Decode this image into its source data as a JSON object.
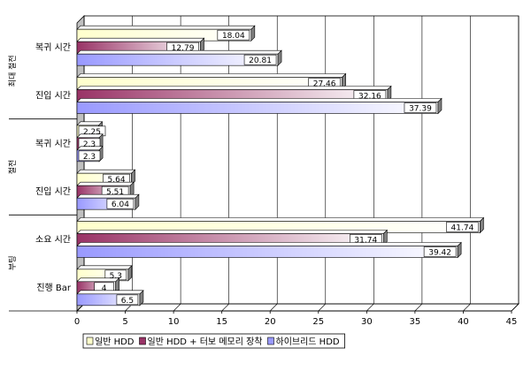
{
  "chart_data": {
    "type": "bar",
    "orientation": "horizontal",
    "style": "3d",
    "xlim": [
      0,
      45
    ],
    "x_ticks": [
      "0",
      "5",
      "10",
      "15",
      "20",
      "25",
      "30",
      "35",
      "40",
      "45"
    ],
    "grid": true,
    "legend_position": "bottom",
    "categories": [
      "복귀 시간",
      "진입 시간",
      "복귀 시간",
      "진입 시간",
      "소요 시간",
      "진행 Bar"
    ],
    "groups": [
      {
        "label": "최대 절전",
        "categories": [
          0,
          1
        ]
      },
      {
        "label": "절전",
        "categories": [
          2,
          3
        ]
      },
      {
        "label": "부팅",
        "categories": [
          4,
          5
        ]
      }
    ],
    "series": [
      {
        "name": "일반 HDD",
        "values": [
          18.04,
          27.46,
          2.25,
          5.64,
          41.74,
          5.3
        ],
        "labels": [
          "18.04",
          "27.46",
          "2.25",
          "5.64",
          "41.74",
          "5.3"
        ]
      },
      {
        "name": "일반 HDD + 터보 메모리 장착",
        "values": [
          12.79,
          32.16,
          2.3,
          5.51,
          31.74,
          4
        ],
        "labels": [
          "12.79",
          "32.16",
          "2.3",
          "5.51",
          "31.74",
          "4"
        ]
      },
      {
        "name": "하이브리드 HDD",
        "values": [
          20.81,
          37.39,
          2.3,
          6.04,
          39.42,
          6.5
        ],
        "labels": [
          "20.81",
          "37.39",
          "2.3",
          "6.04",
          "39.42",
          "6.5"
        ]
      }
    ],
    "colors": {
      "series": [
        "#ffffcc",
        "#993366",
        "#9999ff"
      ],
      "grid": "#000000"
    }
  }
}
